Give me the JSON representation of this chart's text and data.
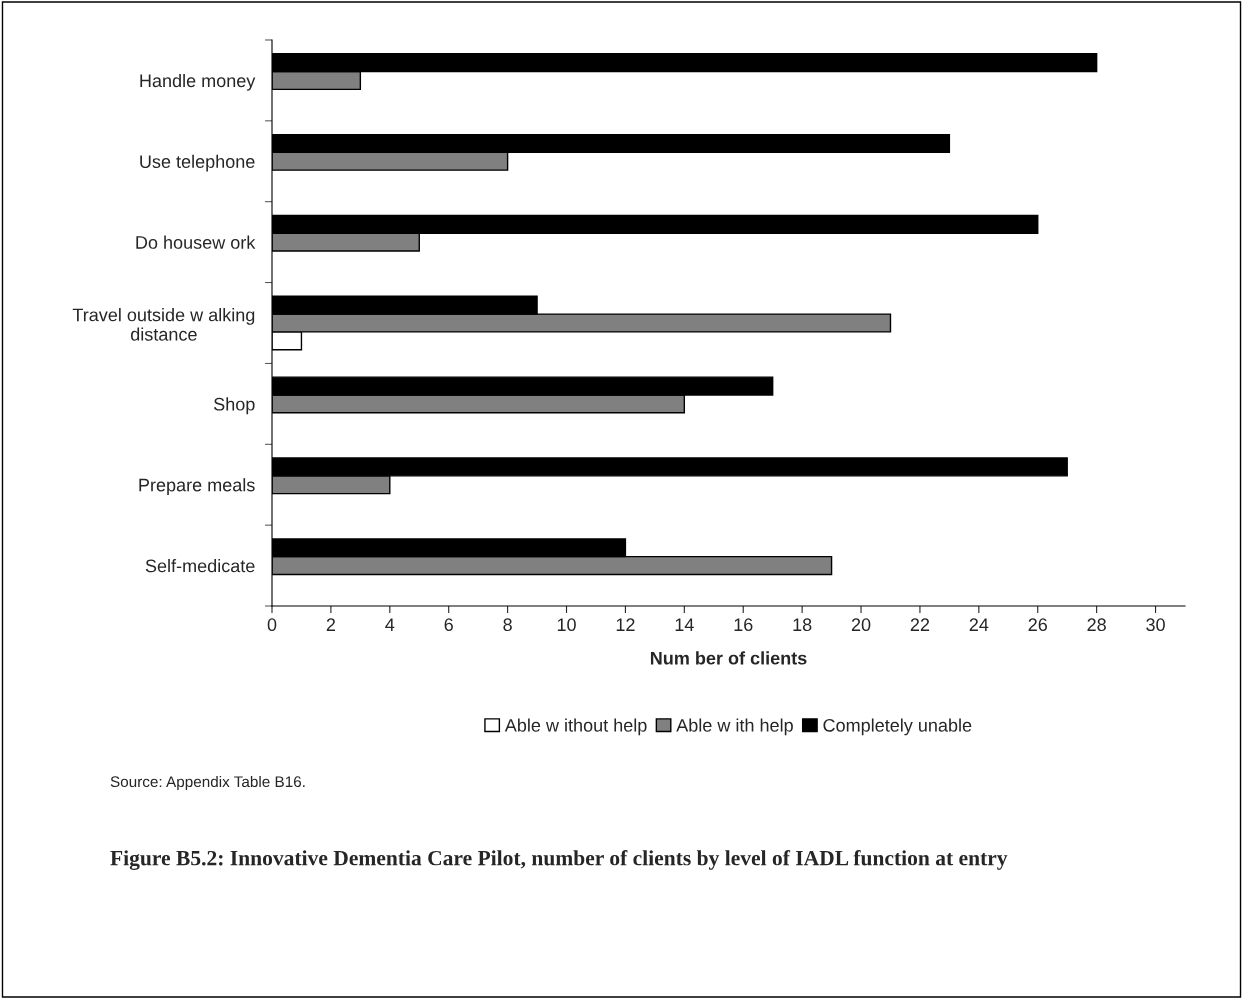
{
  "chart_data": {
    "type": "bar",
    "orientation": "horizontal",
    "title": "Figure B5.2: Innovative Dementia Care Pilot, number of clients by level of IADL function at entry",
    "xlabel": "Num ber of clients",
    "categories": [
      "Handle money",
      "Use telephone",
      "Do housew ork",
      "Travel outside w alking distance",
      "Shop",
      "Prepare meals",
      "Self-medicate"
    ],
    "series": [
      {
        "name": "Able w ithout help",
        "color": "#ffffff",
        "values": [
          null,
          null,
          null,
          1,
          null,
          null,
          null
        ]
      },
      {
        "name": "Able w ith help",
        "color": "#808080",
        "values": [
          3,
          8,
          5,
          21,
          14,
          4,
          19
        ]
      },
      {
        "name": "Completely unable",
        "color": "#000000",
        "values": [
          28,
          23,
          26,
          9,
          17,
          27,
          12
        ]
      }
    ],
    "xlim": [
      0,
      31
    ],
    "xticks": [
      0,
      2,
      4,
      6,
      8,
      10,
      12,
      14,
      16,
      18,
      20,
      22,
      24,
      26,
      28,
      30
    ],
    "grid": false,
    "legend": "bottom",
    "annotations": [
      "Source: Appendix Table B16."
    ]
  }
}
